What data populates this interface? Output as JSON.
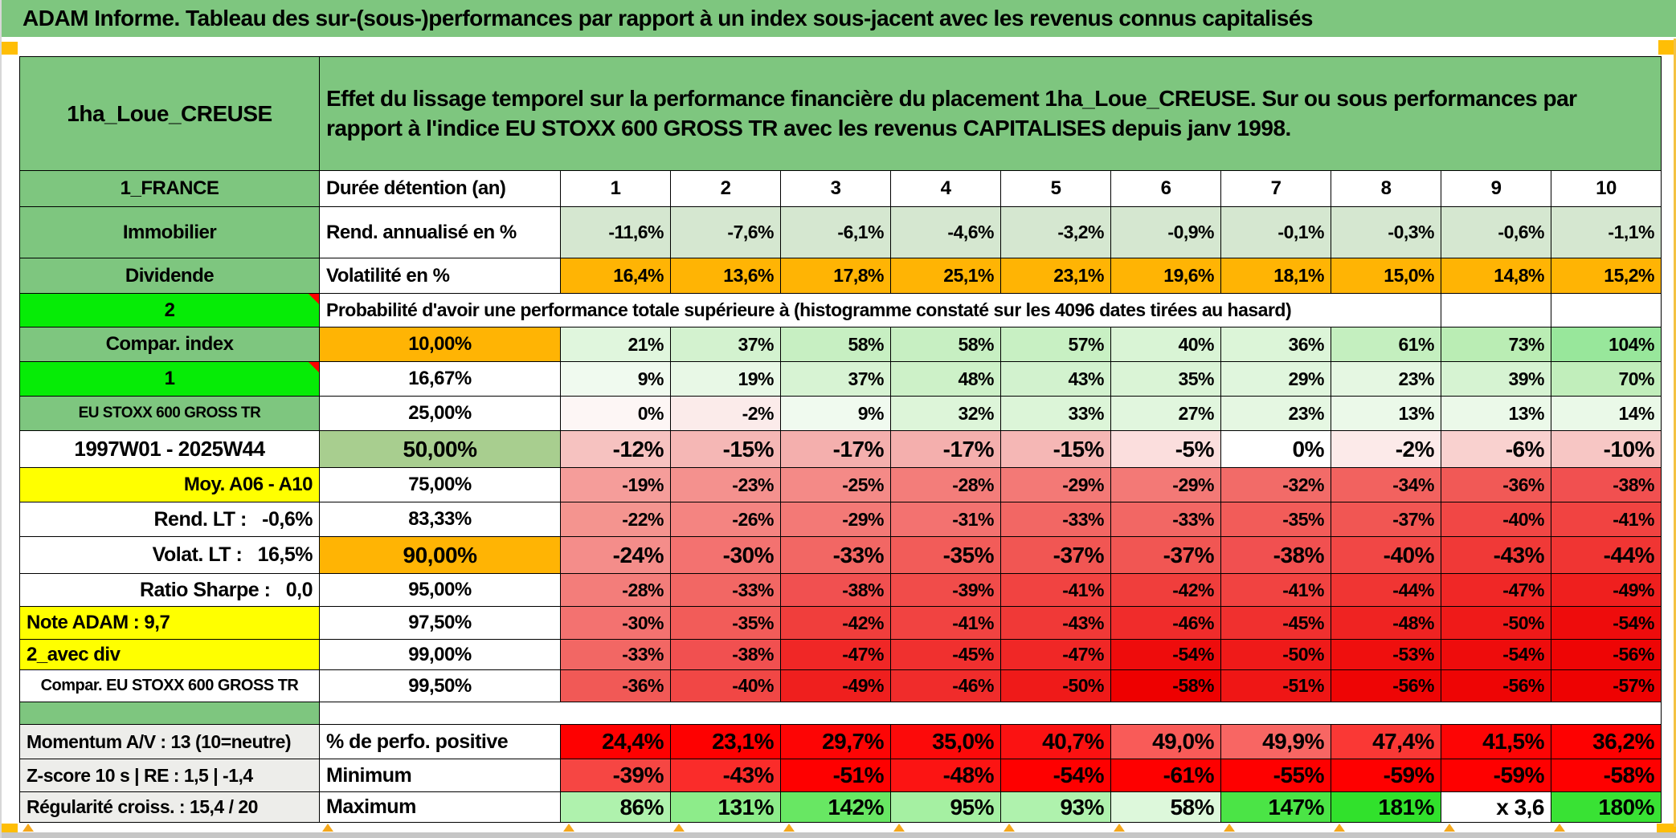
{
  "title": "ADAM Informe. Tableau des sur-(sous-)performances par rapport à un index sous-jacent avec les revenus connus capitalisés",
  "header": {
    "name": "1ha_Loue_CREUSE",
    "description": "Effet du lissage temporel sur la performance financière du placement 1ha_Loue_CREUSE. Sur ou sous performances par rapport à l'indice EU STOXX 600 GROSS TR avec les revenus CAPITALISES depuis janv 1998."
  },
  "colors": {
    "sheet_green": "#7EC67F",
    "comment_lime": "#06EC06",
    "accent_orange": "#FFB404",
    "accent_yellow": "#FFFF00",
    "sage": "#A8CE8F",
    "pale_sage": "#D5E7D0",
    "gray_label": "#EDEDEA",
    "red_text": "#FF0000"
  },
  "table": {
    "rows": [
      {
        "id": "duree-detention",
        "a_cls": "green",
        "a": "1_FRANCE",
        "b_cls": "label",
        "b": "Durée détention (an)",
        "head": true,
        "cells": [
          "1",
          "2",
          "3",
          "4",
          "5",
          "6",
          "7",
          "8",
          "9",
          "10"
        ],
        "bg": [
          "#FFFFFF",
          "#FFFFFF",
          "#FFFFFF",
          "#FFFFFF",
          "#FFFFFF",
          "#FFFFFF",
          "#FFFFFF",
          "#FFFFFF",
          "#FFFFFF",
          "#FFFFFF"
        ]
      },
      {
        "id": "rend-annualise",
        "a_cls": "green",
        "a": "Immobilier",
        "b_cls": "label",
        "b": "Rend. annualisé en %",
        "cells": [
          "-11,6%",
          "-7,6%",
          "-6,1%",
          "-4,6%",
          "-3,2%",
          "-0,9%",
          "-0,1%",
          "-0,3%",
          "-0,6%",
          "-1,1%"
        ],
        "bg": [
          "#D5E7D0",
          "#D5E7D0",
          "#D5E7D0",
          "#D5E7D0",
          "#D5E7D0",
          "#D5E7D0",
          "#D5E7D0",
          "#D5E7D0",
          "#D5E7D0",
          "#D5E7D0"
        ]
      },
      {
        "id": "volatilite",
        "a_cls": "green",
        "a": "Dividende",
        "b_cls": "label",
        "b": "Volatilité en %",
        "cells": [
          "16,4%",
          "13,6%",
          "17,8%",
          "25,1%",
          "23,1%",
          "19,6%",
          "18,1%",
          "15,0%",
          "14,8%",
          "15,2%"
        ],
        "bg": [
          "#FFB404",
          "#FFB404",
          "#FFB404",
          "#FFB404",
          "#FFB404",
          "#FFB404",
          "#FFB404",
          "#FFB404",
          "#FFB404",
          "#FFB404"
        ]
      },
      {
        "id": "probabilite",
        "a_cls": "lime",
        "a": "2",
        "comment": true,
        "span": "Probabilité d'avoir une performance totale supérieure à (histogramme constaté sur les 4096 dates tirées au hasard)"
      },
      {
        "id": "p10",
        "a_cls": "green",
        "a": "Compar. index",
        "b_cls": "pct orange",
        "b": "10,00%",
        "cells": [
          "21%",
          "37%",
          "58%",
          "58%",
          "57%",
          "40%",
          "36%",
          "61%",
          "73%",
          "104%"
        ],
        "bg": [
          "#E0F6DD",
          "#D3F2CF",
          "#C7EFC2",
          "#C7EFC2",
          "#C8F0C3",
          "#D9F4D5",
          "#DCF5D8",
          "#C4EFBF",
          "#BAEDB4",
          "#98E79B"
        ]
      },
      {
        "id": "p16",
        "a_cls": "lime",
        "a": "1",
        "comment": true,
        "b_cls": "pct",
        "b": "16,67%",
        "cells": [
          "9%",
          "19%",
          "37%",
          "48%",
          "43%",
          "35%",
          "29%",
          "23%",
          "39%",
          "70%"
        ],
        "bg": [
          "#F0FAEF",
          "#E8F8E6",
          "#D7F3D3",
          "#CDF1C8",
          "#D2F2CE",
          "#DAF4D6",
          "#E0F6DD",
          "#E5F7E2",
          "#D6F3D2",
          "#C1EEBB"
        ]
      },
      {
        "id": "p25",
        "a_cls": "green small",
        "a": "EU STOXX 600 GROSS TR",
        "b_cls": "pct",
        "b": "25,00%",
        "cells": [
          "0%",
          "-2%",
          "9%",
          "32%",
          "33%",
          "27%",
          "23%",
          "13%",
          "13%",
          "14%"
        ],
        "bg": [
          "#FDF6F5",
          "#FBEBEA",
          "#F0FAEF",
          "#DDF5D9",
          "#DCF5D8",
          "#E1F6DE",
          "#E5F7E2",
          "#EBF9E9",
          "#EBF9E9",
          "#EAF9E8"
        ]
      },
      {
        "id": "p50",
        "a_cls": "date",
        "a": "1997W01 - 2025W44",
        "b_cls": "pct sage big",
        "b": "50,00%",
        "strong": true,
        "cells": [
          "-12%",
          "-15%",
          "-17%",
          "-17%",
          "-15%",
          "-5%",
          "0%",
          "-2%",
          "-6%",
          "-10%"
        ],
        "bg": [
          "#F6C2C0",
          "#F5B7B5",
          "#F4AFAD",
          "#F4AFAD",
          "#F5B7B5",
          "#FBDEDD",
          "#FFFFFF",
          "#FCEAE9",
          "#F9D1CF",
          "#F7C6C4"
        ]
      },
      {
        "id": "p75",
        "a_cls": "yright",
        "a": "Moy. A06 - A10",
        "b_cls": "pct",
        "b": "75,00%",
        "cells": [
          "-19%",
          "-23%",
          "-25%",
          "-28%",
          "-29%",
          "-29%",
          "-32%",
          "-34%",
          "-36%",
          "-38%"
        ],
        "bg": [
          "#F59D9A",
          "#F4918E",
          "#F48A87",
          "#F37D7A",
          "#F37976",
          "#F37976",
          "#F26B68",
          "#F2625F",
          "#F15956",
          "#F15050"
        ]
      },
      {
        "id": "p83",
        "a_cls": "redright",
        "a": "Rend. LT :   -0,6%",
        "b_cls": "pct",
        "b": "83,33%",
        "cells": [
          "-22%",
          "-26%",
          "-29%",
          "-31%",
          "-33%",
          "-33%",
          "-35%",
          "-37%",
          "-40%",
          "-41%"
        ],
        "bg": [
          "#F4948F",
          "#F48481",
          "#F37976",
          "#F37270",
          "#F26764",
          "#F26764",
          "#F25C59",
          "#F15653",
          "#F14745",
          "#F14341"
        ]
      },
      {
        "id": "p90",
        "a_cls": "redright",
        "a": "Volat. LT :   16,5%",
        "b_cls": "pct orange big",
        "b": "90,00%",
        "strong": true,
        "cells": [
          "-24%",
          "-30%",
          "-33%",
          "-35%",
          "-37%",
          "-37%",
          "-38%",
          "-40%",
          "-43%",
          "-44%"
        ],
        "bg": [
          "#F48D8A",
          "#F37270",
          "#F26764",
          "#F25C59",
          "#F15653",
          "#F15653",
          "#F15050",
          "#F14745",
          "#F03937",
          "#F03533"
        ]
      },
      {
        "id": "p95",
        "a_cls": "redright",
        "a": "Ratio Sharpe :   0,0",
        "b_cls": "pct",
        "b": "95,00%",
        "cells": [
          "-28%",
          "-33%",
          "-38%",
          "-39%",
          "-41%",
          "-42%",
          "-41%",
          "-44%",
          "-47%",
          "-49%"
        ],
        "bg": [
          "#F37D7A",
          "#F26764",
          "#F15050",
          "#F14C4A",
          "#F14341",
          "#F03E3C",
          "#F14341",
          "#F03533",
          "#F02726",
          "#EF1F1E"
        ]
      },
      {
        "id": "p975",
        "a_cls": "yleft",
        "a": "Note ADAM : 9,7",
        "b_cls": "pct",
        "b": "97,50%",
        "thicktop": true,
        "cells": [
          "-30%",
          "-35%",
          "-42%",
          "-41%",
          "-43%",
          "-46%",
          "-45%",
          "-48%",
          "-50%",
          "-54%"
        ],
        "bg": [
          "#F37270",
          "#F25C59",
          "#F03E3C",
          "#F14341",
          "#F03937",
          "#F02C2B",
          "#F0302F",
          "#EF2322",
          "#EF1A19",
          "#EE0C0C"
        ]
      },
      {
        "id": "p99",
        "a_cls": "yleft",
        "a": "2_avec div",
        "b_cls": "pct",
        "b": "99,00%",
        "cells": [
          "-33%",
          "-38%",
          "-47%",
          "-45%",
          "-47%",
          "-54%",
          "-50%",
          "-53%",
          "-54%",
          "-56%"
        ],
        "bg": [
          "#F26764",
          "#F15050",
          "#F02726",
          "#F0302F",
          "#F02726",
          "#EE0C0C",
          "#EF1A19",
          "#EF0F0E",
          "#EE0C0C",
          "#EE0505"
        ]
      },
      {
        "id": "p995",
        "a_cls": "whitesmall",
        "a": "Compar. EU STOXX 600 GROSS TR",
        "b_cls": "pct",
        "b": "99,50%",
        "cells": [
          "-36%",
          "-40%",
          "-49%",
          "-46%",
          "-50%",
          "-58%",
          "-51%",
          "-56%",
          "-56%",
          "-57%"
        ],
        "bg": [
          "#F15956",
          "#F14745",
          "#EF1F1E",
          "#F02C2B",
          "#EF1A19",
          "#EE0000",
          "#EF1615",
          "#EE0505",
          "#EE0505",
          "#EE0202"
        ]
      }
    ],
    "bottom_rows": [
      {
        "id": "perfo-positive",
        "a_cls": "gray",
        "a": "Momentum A/V : 13 (10=neutre)",
        "b_cls": "blabel",
        "b": "% de perfo. positive",
        "cells": [
          "24,4%",
          "23,1%",
          "29,7%",
          "35,0%",
          "40,7%",
          "49,0%",
          "49,9%",
          "47,4%",
          "41,5%",
          "36,2%"
        ],
        "bg": [
          "#FE0101",
          "#FE0101",
          "#FD0505",
          "#FC0A0A",
          "#FB1212",
          "#F95B58",
          "#F86663",
          "#FA3835",
          "#FD0505",
          "#FE0101"
        ]
      },
      {
        "id": "minimum",
        "a_cls": "gray",
        "a": "Z-score 10 s | RE : 1,5 | -1,4",
        "b_cls": "blabel",
        "b": "Minimum",
        "cells": [
          "-39%",
          "-43%",
          "-51%",
          "-48%",
          "-54%",
          "-61%",
          "-55%",
          "-59%",
          "-59%",
          "-58%"
        ],
        "bg": [
          "#F64643",
          "#FA2C2A",
          "#FE0000",
          "#FC1413",
          "#FE0000",
          "#FE0000",
          "#FE0000",
          "#FE0000",
          "#FE0000",
          "#FE0000"
        ]
      },
      {
        "id": "maximum",
        "a_cls": "gray",
        "a": "Régularité croiss. : 15,4 / 20",
        "b_cls": "blabel",
        "b": "Maximum",
        "cells": [
          "86%",
          "131%",
          "142%",
          "95%",
          "93%",
          "58%",
          "147%",
          "181%",
          "x 3,6",
          "180%"
        ],
        "bg": [
          "#AFF2AD",
          "#8DEC8A",
          "#68E763",
          "#A5F0A2",
          "#AFF2AD",
          "#DDF8DB",
          "#4BE446",
          "#31E12C",
          "#FFFFFF",
          "#39E234"
        ]
      }
    ]
  }
}
